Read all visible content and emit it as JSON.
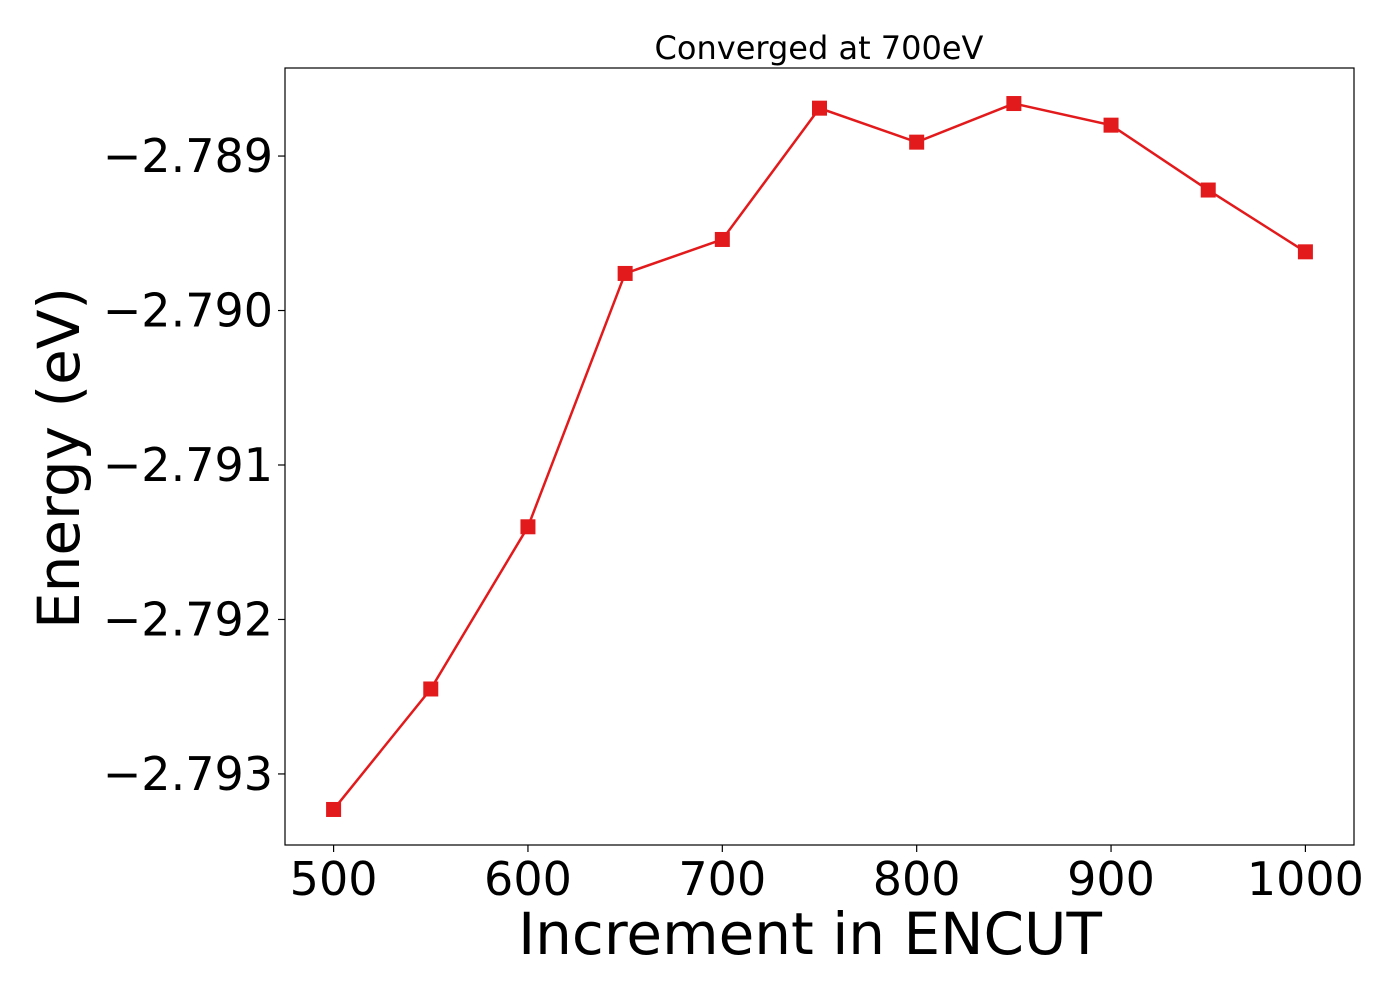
{
  "chart_data": {
    "type": "line",
    "title": "Converged at 700eV",
    "xlabel": "Increment in ENCUT",
    "ylabel": "Energy (eV)",
    "x": [
      500,
      550,
      600,
      650,
      700,
      750,
      800,
      850,
      900,
      950,
      1000
    ],
    "series": [
      {
        "values": [
          -2.79323,
          -2.79245,
          -2.7914,
          -2.78976,
          -2.78954,
          -2.78869,
          -2.78891,
          -2.78866,
          -2.7888,
          -2.78922,
          -2.78962
        ],
        "color": "#e31a1c",
        "marker": "square"
      }
    ],
    "xticks": [
      500,
      600,
      700,
      800,
      900,
      1000
    ],
    "xtick_labels": [
      "500",
      "600",
      "700",
      "800",
      "900",
      "1000"
    ],
    "yticks": [
      -2.789,
      -2.79,
      -2.791,
      -2.792,
      -2.793
    ],
    "ytick_labels": [
      "−2.789",
      "−2.790",
      "−2.791",
      "−2.792",
      "−2.793"
    ],
    "xlim": [
      475,
      1025
    ],
    "ylim": [
      -2.79346,
      -2.78843
    ],
    "grid": false,
    "legend": false
  }
}
